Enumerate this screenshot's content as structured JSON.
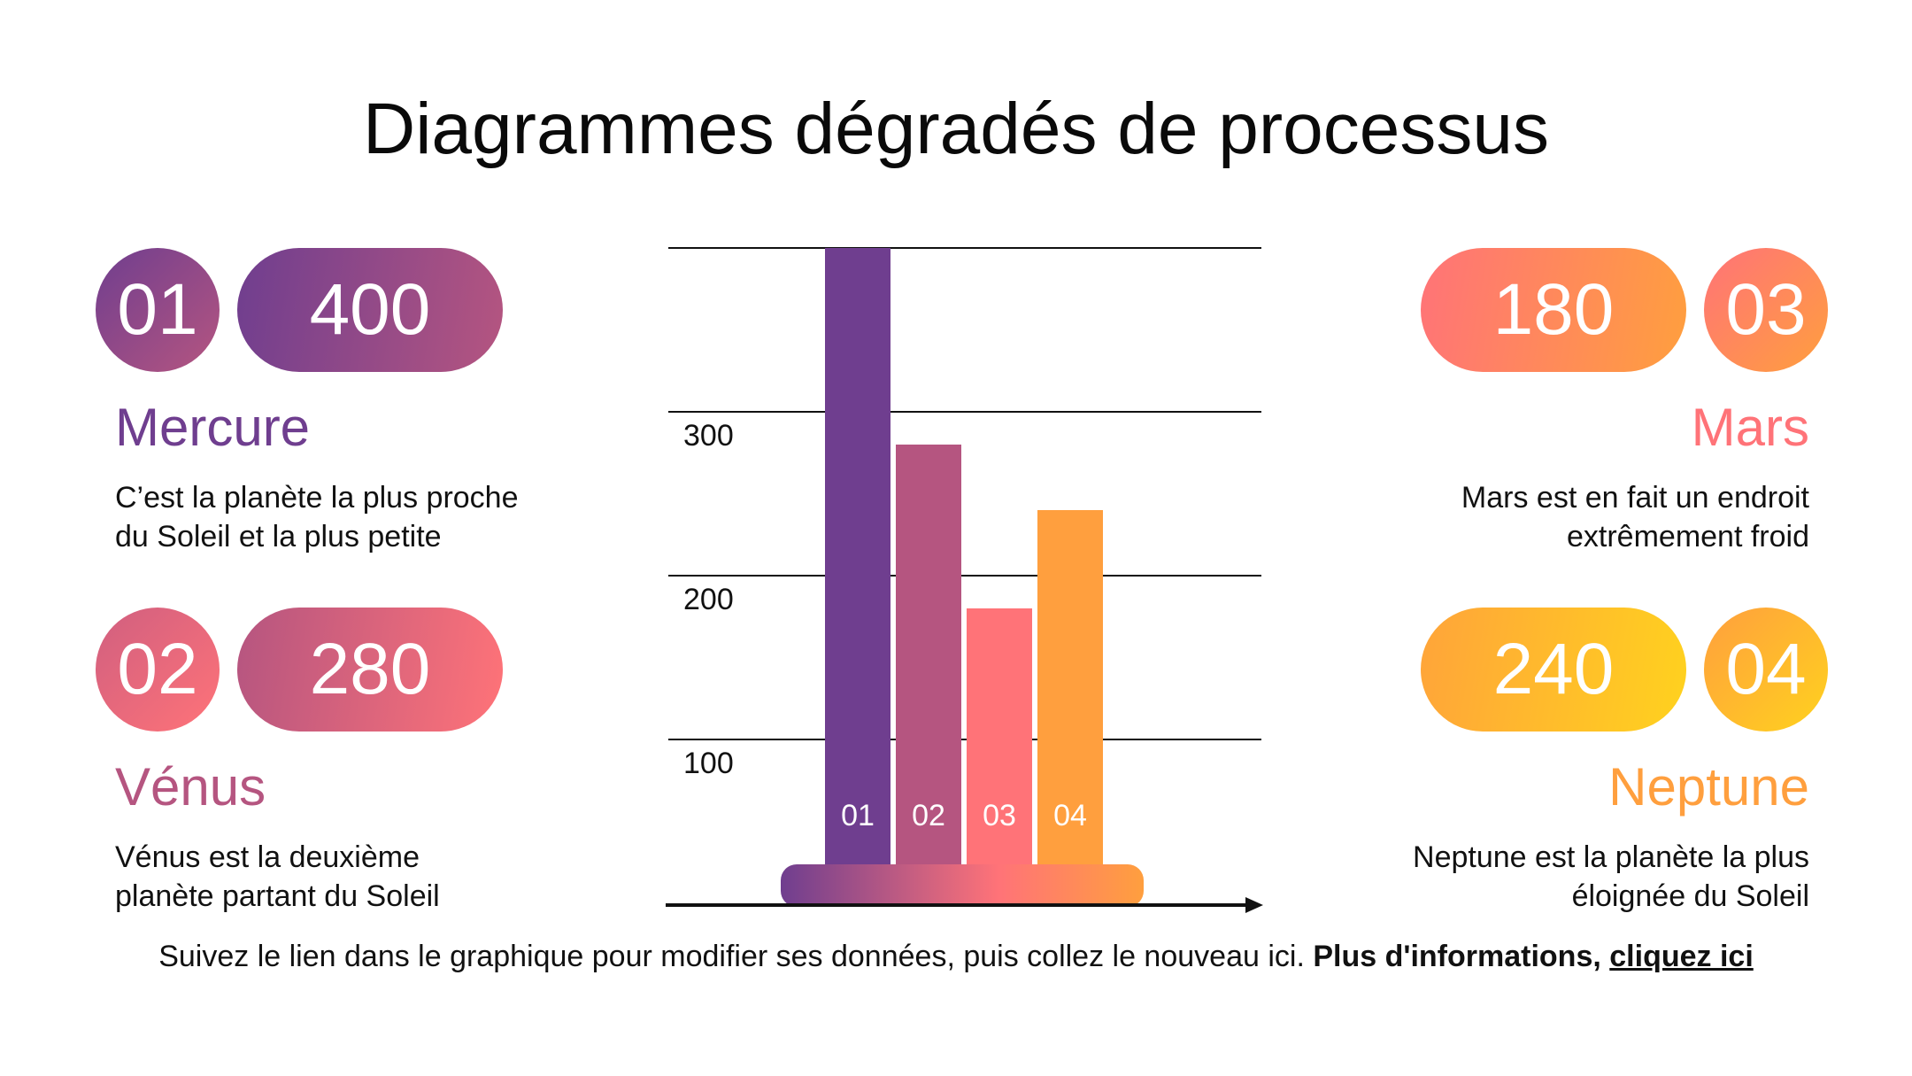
{
  "title": "Diagrammes dégradés de processus",
  "colors": {
    "purple": "#6f3e8f",
    "magenta": "#b55580",
    "coral": "#ff7378",
    "orange": "#ff9f3e",
    "yellow": "#ffd21e"
  },
  "planets": [
    {
      "num": "01",
      "value": "400",
      "name": "Mercure",
      "desc_line1": "C’est la planète la plus proche",
      "desc_line2": "du Soleil et la plus petite"
    },
    {
      "num": "02",
      "value": "280",
      "name": "Vénus",
      "desc_line1": "Vénus est la deuxième",
      "desc_line2": "planète partant du Soleil"
    },
    {
      "num": "03",
      "value": "180",
      "name": "Mars",
      "desc_line1": "Mars est en fait un endroit",
      "desc_line2": "extrêmement froid"
    },
    {
      "num": "04",
      "value": "240",
      "name": "Neptune",
      "desc_line1": "Neptune est la planète la plus",
      "desc_line2": "éloignée du Soleil"
    }
  ],
  "chart_data": {
    "type": "bar",
    "categories": [
      "01",
      "02",
      "03",
      "04"
    ],
    "values": [
      400,
      280,
      180,
      240
    ],
    "y_ticks": [
      "100",
      "200",
      "300"
    ],
    "ylim": [
      0,
      400
    ],
    "grid": true,
    "bar_colors": [
      "#6f3e8f",
      "#b55580",
      "#ff7378",
      "#ff9f3e"
    ]
  },
  "footer": {
    "text": "Suivez le lien dans le graphique pour modifier ses données, puis collez le nouveau ici.",
    "bold_text": "Plus d'informations,",
    "link_text": "cliquez ici"
  }
}
